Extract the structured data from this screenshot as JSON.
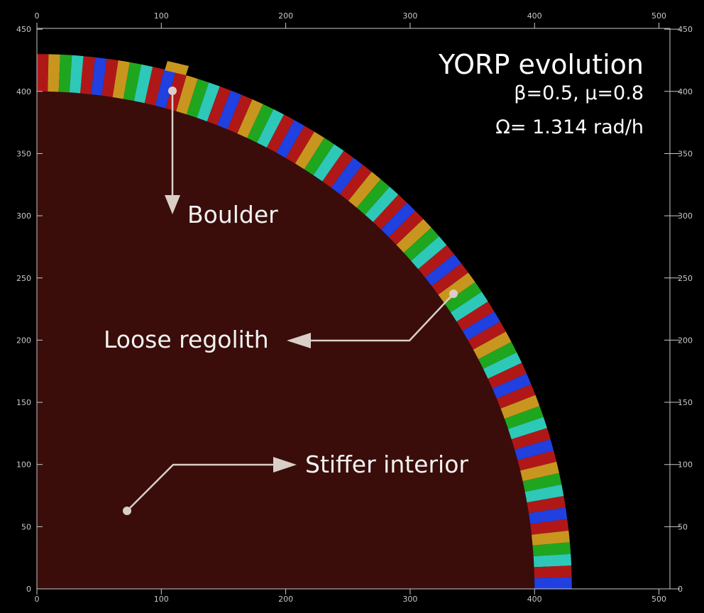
{
  "title": {
    "main": "YORP evolution",
    "params": "β=0.5, μ=0.8",
    "omega": "Ω= 1.314 rad/h"
  },
  "axes": {
    "x_ticks": [
      "0",
      "100",
      "200",
      "300",
      "400",
      "500"
    ],
    "y_ticks": [
      "0",
      "50",
      "100",
      "150",
      "200",
      "250",
      "300",
      "350",
      "400",
      "450"
    ]
  },
  "annotations": {
    "boulder": "Boulder",
    "regolith": "Loose regolith",
    "interior": "Stiffer interior"
  },
  "colors": {
    "background": "#000000",
    "interior": "#3a0d0a",
    "shell": [
      "#b01818",
      "#c8961e",
      "#1fa61f",
      "#2ec8b8",
      "#b01818",
      "#2040e0"
    ],
    "axis": "#c8c8c8",
    "arrow": "#d9cfc8"
  }
}
